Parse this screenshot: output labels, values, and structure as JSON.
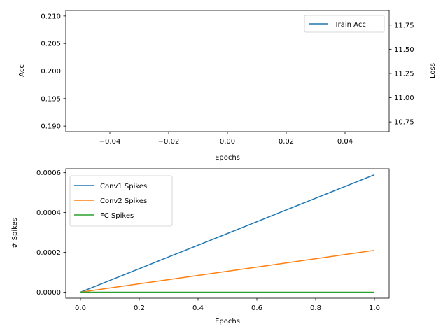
{
  "chart_data": [
    {
      "type": "line",
      "xlabel": "Epochs",
      "ylabel": "Acc",
      "y2label": "Loss",
      "xlim": [
        -0.055,
        0.055
      ],
      "ylim": [
        0.189,
        0.211
      ],
      "y2lim": [
        10.65,
        11.9
      ],
      "xticks": [
        -0.04,
        -0.02,
        0.0,
        0.02,
        0.04
      ],
      "xtick_labels": [
        "−0.04",
        "−0.02",
        "0.00",
        "0.02",
        "0.04"
      ],
      "yticks": [
        0.19,
        0.195,
        0.2,
        0.205,
        0.21
      ],
      "ytick_labels": [
        "0.190",
        "0.195",
        "0.200",
        "0.205",
        "0.210"
      ],
      "y2ticks": [
        10.75,
        11.0,
        11.25,
        11.5,
        11.75
      ],
      "y2tick_labels": [
        "10.75",
        "11.00",
        "11.25",
        "11.50",
        "11.75"
      ],
      "legend_position": "upper-right",
      "series": [
        {
          "name": "Train Acc",
          "color": "#1f77b4",
          "x": [],
          "y": []
        }
      ],
      "grid": false
    },
    {
      "type": "line",
      "xlabel": "Epochs",
      "ylabel": "# Spikes",
      "xlim": [
        -0.05,
        1.05
      ],
      "ylim": [
        -3e-05,
        0.00062
      ],
      "xticks": [
        0.0,
        0.2,
        0.4,
        0.6,
        0.8,
        1.0
      ],
      "xtick_labels": [
        "0.0",
        "0.2",
        "0.4",
        "0.6",
        "0.8",
        "1.0"
      ],
      "yticks": [
        0.0,
        0.0002,
        0.0004,
        0.0006
      ],
      "ytick_labels": [
        "0.0000",
        "0.0002",
        "0.0004",
        "0.0006"
      ],
      "legend_position": "upper-left",
      "series": [
        {
          "name": "Conv1 Spikes",
          "color": "#1f77b4",
          "x": [
            0,
            1
          ],
          "y": [
            0.0,
            0.00059
          ]
        },
        {
          "name": "Conv2 Spikes",
          "color": "#ff7f0e",
          "x": [
            0,
            1
          ],
          "y": [
            0.0,
            0.00021
          ]
        },
        {
          "name": "FC Spikes",
          "color": "#2ca02c",
          "x": [
            0,
            1
          ],
          "y": [
            0.0,
            0.0
          ]
        }
      ],
      "grid": false
    }
  ]
}
